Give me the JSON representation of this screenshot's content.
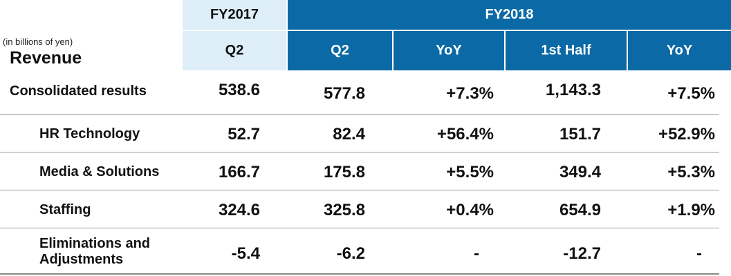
{
  "header": {
    "fy2017": "FY2017",
    "fy2018": "FY2018",
    "unit": "(in billions of yen)",
    "section": "Revenue",
    "columns": [
      "Q2",
      "Q2",
      "YoY",
      "1st Half",
      "YoY"
    ]
  },
  "rows": [
    {
      "label": "Consolidated results",
      "fy17_q2": "538.6",
      "fy18_q2": "577.8",
      "q2_yoy": "+7.3%",
      "half": "1,143.3",
      "half_yoy": "+7.5%"
    },
    {
      "label": "HR Technology",
      "fy17_q2": "52.7",
      "fy18_q2": "82.4",
      "q2_yoy": "+56.4%",
      "half": "151.7",
      "half_yoy": "+52.9%"
    },
    {
      "label": "Media & Solutions",
      "fy17_q2": "166.7",
      "fy18_q2": "175.8",
      "q2_yoy": "+5.5%",
      "half": "349.4",
      "half_yoy": "+5.3%"
    },
    {
      "label": "Staffing",
      "fy17_q2": "324.6",
      "fy18_q2": "325.8",
      "q2_yoy": "+0.4%",
      "half": "654.9",
      "half_yoy": "+1.9%"
    },
    {
      "label_line1": "Eliminations and",
      "label_line2": "Adjustments",
      "fy17_q2": "-5.4",
      "fy18_q2": "-6.2",
      "q2_yoy": "-",
      "half": "-12.7",
      "half_yoy": "-"
    }
  ],
  "colors": {
    "fy2017_bg": "#ddeef9",
    "fy2018_bg": "#0b6aa6",
    "header_text_fy2018": "#ffffff"
  }
}
